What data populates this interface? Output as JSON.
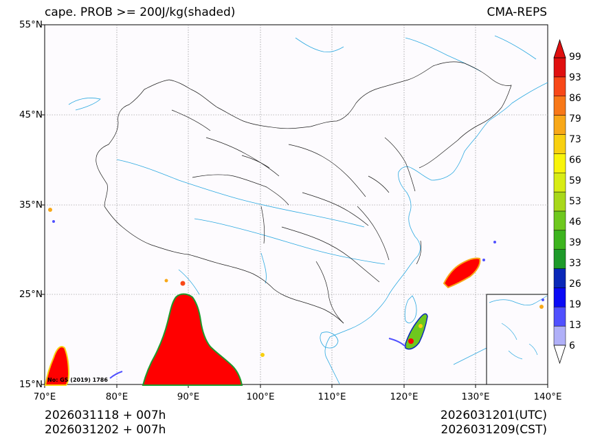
{
  "header": {
    "title_left": "cape. PROB >= 200J/kg(shaded)",
    "title_right": "CMA-REPS"
  },
  "axes": {
    "lat_labels": [
      "55°N",
      "45°N",
      "35°N",
      "25°N",
      "15°N"
    ],
    "lon_labels": [
      "70°E",
      "80°E",
      "90°E",
      "100°E",
      "110°E",
      "120°E",
      "130°E",
      "140°E"
    ]
  },
  "footer": {
    "init_utc": "2026031118  +  007h",
    "init_cst": "2026031202  +  007h",
    "valid_utc": "2026031201(UTC)",
    "valid_cst": "2026031209(CST)"
  },
  "map_note": "No: GS (2019) 1786",
  "colorbar": {
    "labels": [
      "99",
      "93",
      "86",
      "79",
      "73",
      "66",
      "59",
      "53",
      "46",
      "39",
      "33",
      "26",
      "19",
      "13",
      "6"
    ],
    "colors": [
      "#b0b0f8",
      "#5050ff",
      "#0a0af5",
      "#0a28b8",
      "#1e9a2a",
      "#3cb41e",
      "#6ec81e",
      "#a8d81a",
      "#d8ec14",
      "#f8f40a",
      "#f8d010",
      "#f8a818",
      "#f87818",
      "#f84818",
      "#e01010"
    ],
    "extend_colors": {
      "low": "#ffffff",
      "high": "#e01010"
    }
  },
  "colors": {
    "coast": "#29a8e0",
    "boundary": "#000000",
    "grid": "#777777",
    "prob_high": "#ff0000",
    "prob_mid": "#f8d010",
    "prob_low": "#1e9a2a"
  }
}
